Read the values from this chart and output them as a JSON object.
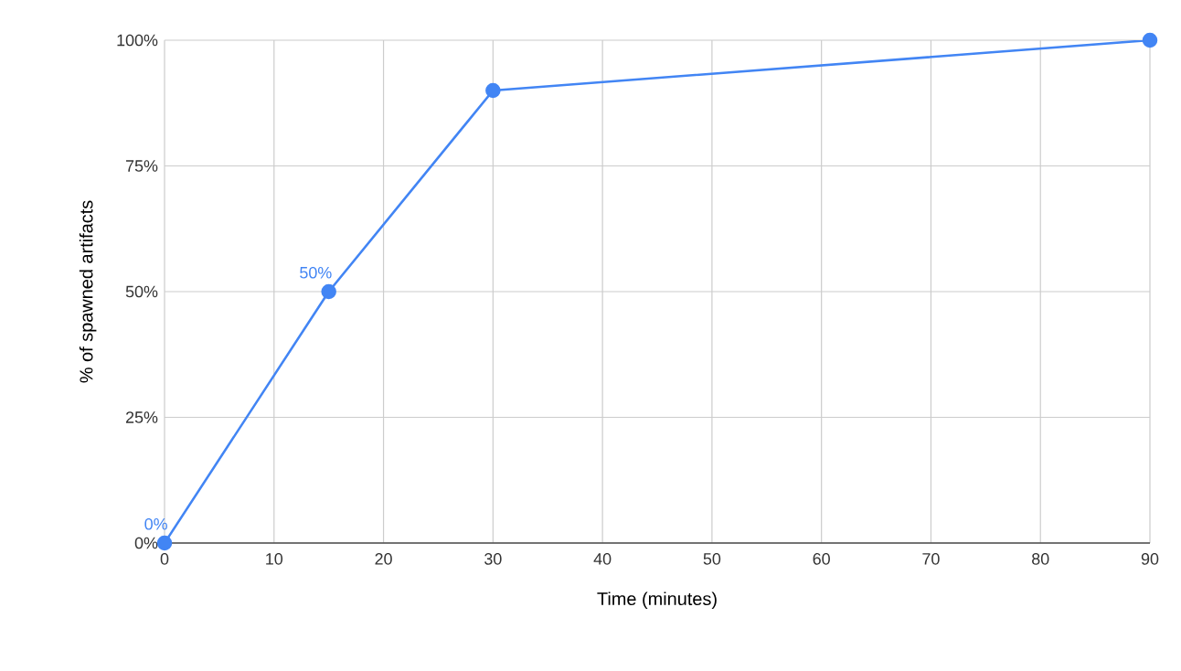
{
  "chart_data": {
    "type": "line",
    "xlabel": "Time (minutes)",
    "ylabel": "% of spawned artifacts",
    "x": [
      0,
      15,
      30,
      90
    ],
    "series": [
      {
        "color": "#4285f4",
        "values": [
          0,
          50,
          90,
          100
        ],
        "value_labels": [
          "0%",
          "50%",
          null,
          null
        ]
      }
    ],
    "xlim": [
      0,
      90
    ],
    "xticks": [
      0,
      10,
      20,
      30,
      40,
      50,
      60,
      70,
      80,
      90
    ],
    "ylim": [
      0,
      100
    ],
    "yticks": [
      {
        "value": 0,
        "label": "0%"
      },
      {
        "value": 25,
        "label": "25%"
      },
      {
        "value": 50,
        "label": "50%"
      },
      {
        "value": 75,
        "label": "75%"
      },
      {
        "value": 100,
        "label": "100%"
      }
    ],
    "grid": true,
    "marker": "circle",
    "line_style": "solid"
  }
}
